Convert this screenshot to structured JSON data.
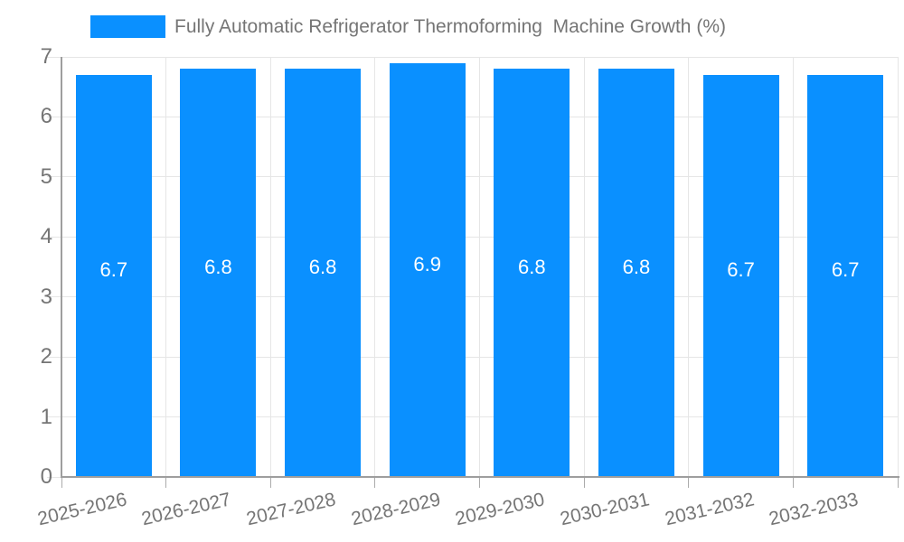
{
  "legend": {
    "label": "Fully Automatic Refrigerator Thermoforming  Machine Growth (%)"
  },
  "colors": {
    "bar": "#0A90FF",
    "grid": "#E6E6E6",
    "axis": "#9E9E9E",
    "x_tick": "#ABABAB",
    "y_tick": "#E6E6E6",
    "text_muted": "#757575",
    "bar_label": "#FFFFFF",
    "background": "#FFFFFF"
  },
  "chart_data": {
    "type": "bar",
    "title": "Fully Automatic Refrigerator Thermoforming  Machine Growth (%)",
    "categories": [
      "2025-2026",
      "2026-2027",
      "2027-2028",
      "2028-2029",
      "2029-2030",
      "2030-2031",
      "2031-2032",
      "2032-2033"
    ],
    "values": [
      6.7,
      6.8,
      6.8,
      6.9,
      6.8,
      6.8,
      6.7,
      6.7
    ],
    "bar_labels": [
      "6.7",
      "6.8",
      "6.8",
      "6.9",
      "6.8",
      "6.8",
      "6.7",
      "6.7"
    ],
    "y_ticks": [
      "0",
      "1",
      "2",
      "3",
      "4",
      "5",
      "6",
      "7"
    ],
    "ylim": [
      0,
      7
    ],
    "xlabel": "",
    "ylabel": "",
    "grid": true,
    "legend_position": "top"
  }
}
